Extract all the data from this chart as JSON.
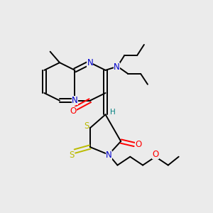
{
  "background_color": "#ebebeb",
  "figsize": [
    3.0,
    3.0
  ],
  "dpi": 100,
  "atom_colors": {
    "C": "#000000",
    "N": "#0000cc",
    "O": "#ff0000",
    "S": "#bbbb00",
    "H": "#008080"
  },
  "lw": 1.4,
  "fs": 8.5,
  "fs_small": 7.5
}
